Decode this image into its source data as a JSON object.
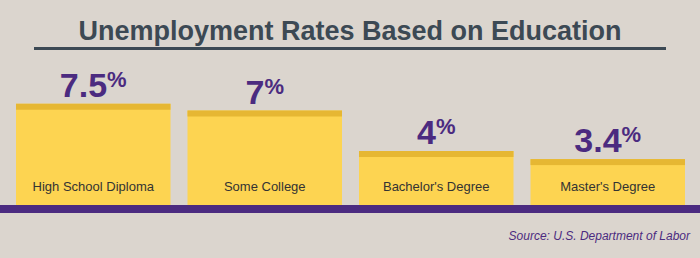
{
  "chart_data": {
    "type": "bar",
    "title": "Unemployment Rates Based on Education",
    "categories": [
      "High School Diploma",
      "Some College",
      "Bachelor's Degree",
      "Master's Degree"
    ],
    "values": [
      7.5,
      7,
      4,
      3.4
    ],
    "value_labels": [
      "7.5%",
      "7%",
      "4%",
      "3.4%"
    ],
    "data_labels": true,
    "color": "#fdd451",
    "ylim": [
      0,
      10
    ],
    "tick_labels": "x",
    "grid": false,
    "source": "Source: U.S. Department of Labor"
  }
}
